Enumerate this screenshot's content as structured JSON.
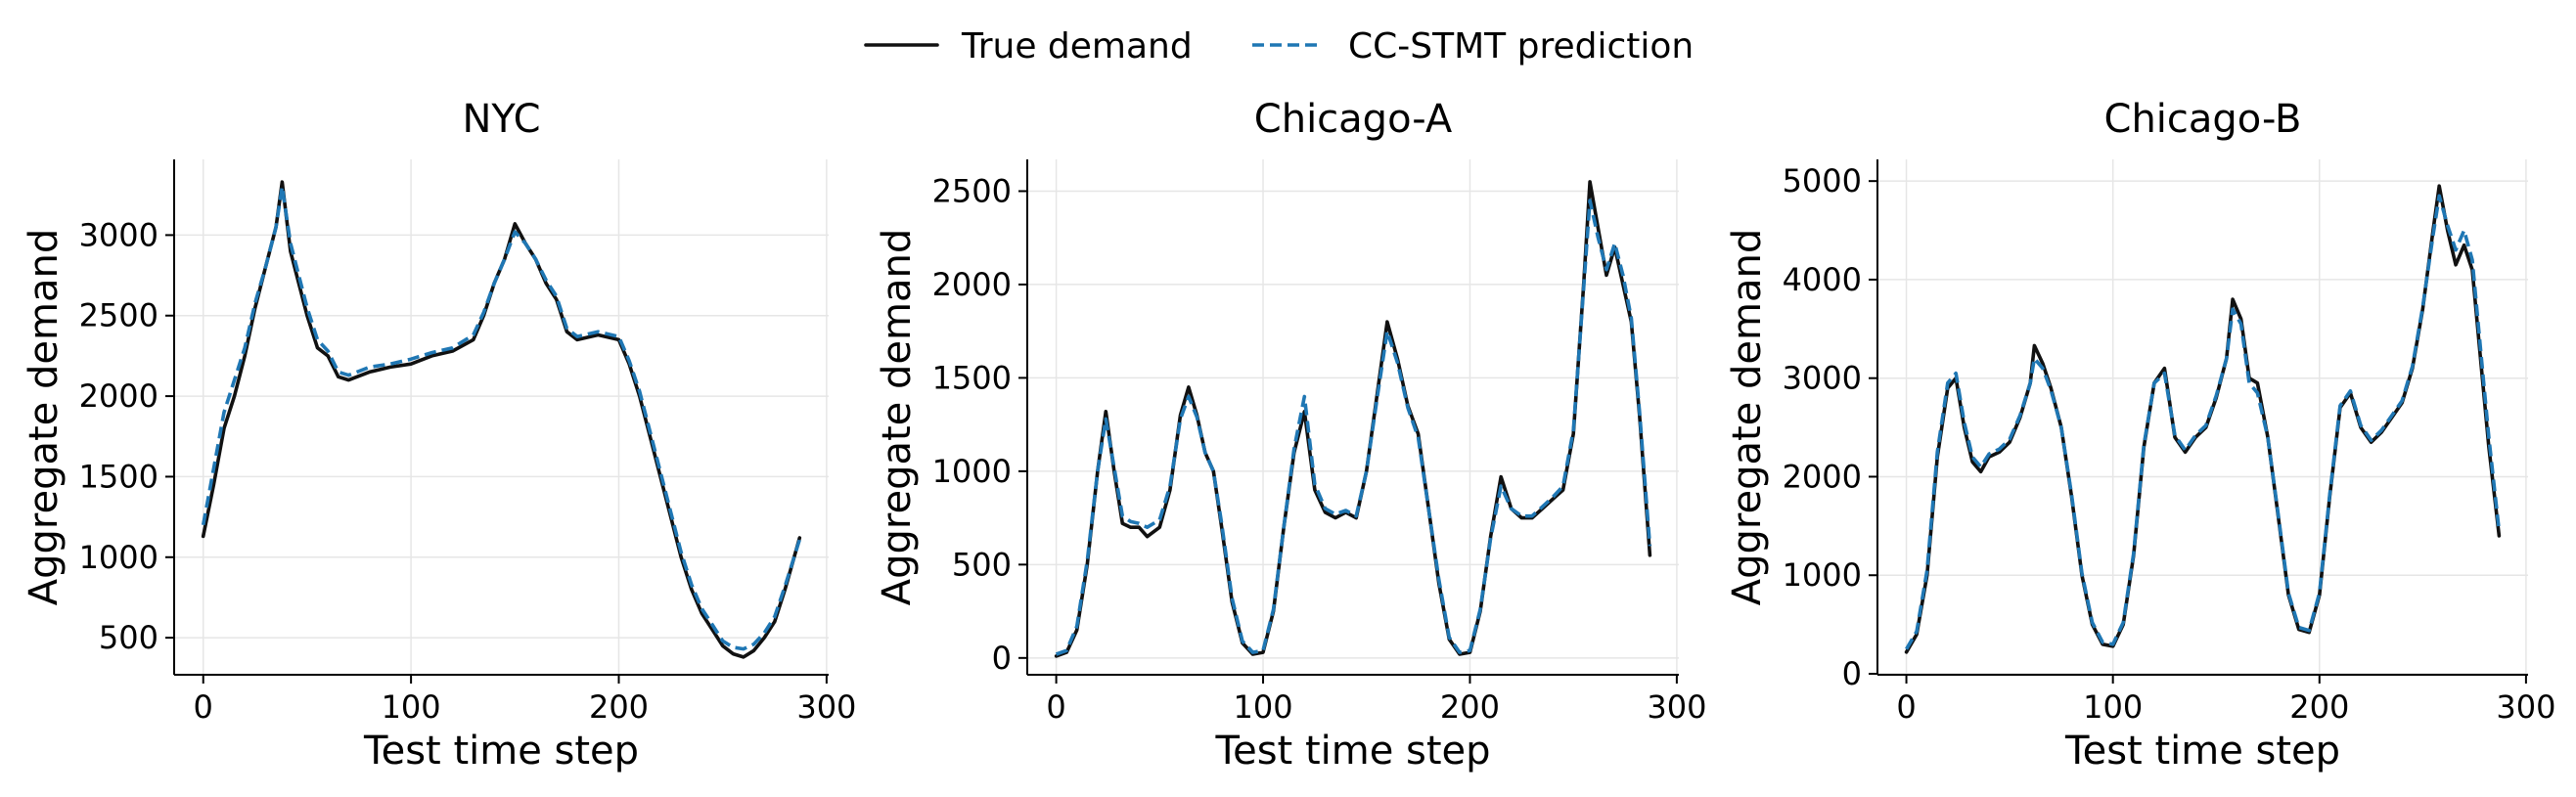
{
  "legend": {
    "true_label": "True demand",
    "pred_label": "CC-STMT prediction"
  },
  "colors": {
    "true": "#111111",
    "pred": "#1f77b4",
    "grid": "#e6e6e6"
  },
  "chart_data": [
    {
      "type": "line",
      "title": "NYC",
      "xlabel": "Test time step",
      "ylabel": "Aggregate demand",
      "xlim": [
        -14,
        301
      ],
      "ylim": [
        270,
        3470
      ],
      "xticks": [
        0,
        100,
        200,
        300
      ],
      "yticks": [
        500,
        1000,
        1500,
        2000,
        2500,
        3000
      ],
      "grid": true,
      "series": [
        {
          "name": "True demand",
          "x": [
            0,
            5,
            10,
            15,
            20,
            25,
            30,
            35,
            38,
            42,
            46,
            50,
            55,
            60,
            65,
            70,
            80,
            90,
            100,
            110,
            120,
            130,
            135,
            140,
            145,
            150,
            155,
            160,
            165,
            170,
            175,
            180,
            190,
            200,
            205,
            210,
            215,
            220,
            225,
            230,
            235,
            240,
            245,
            250,
            255,
            260,
            265,
            270,
            275,
            280,
            287
          ],
          "y": [
            1130,
            1450,
            1800,
            2000,
            2250,
            2550,
            2800,
            3050,
            3330,
            2900,
            2700,
            2500,
            2300,
            2250,
            2120,
            2100,
            2150,
            2180,
            2200,
            2250,
            2280,
            2350,
            2500,
            2700,
            2850,
            3070,
            2950,
            2850,
            2700,
            2600,
            2400,
            2350,
            2380,
            2350,
            2200,
            2000,
            1750,
            1500,
            1250,
            1000,
            800,
            650,
            550,
            450,
            400,
            380,
            420,
            500,
            600,
            800,
            1120
          ]
        },
        {
          "name": "CC-STMT prediction",
          "x": [
            0,
            5,
            10,
            15,
            20,
            25,
            30,
            35,
            38,
            42,
            46,
            50,
            55,
            60,
            65,
            70,
            80,
            90,
            100,
            110,
            120,
            130,
            135,
            140,
            145,
            150,
            155,
            160,
            165,
            170,
            175,
            180,
            190,
            200,
            205,
            210,
            215,
            220,
            225,
            230,
            235,
            240,
            245,
            250,
            255,
            260,
            265,
            270,
            275,
            280,
            287
          ],
          "y": [
            1200,
            1550,
            1900,
            2100,
            2300,
            2580,
            2800,
            3050,
            3300,
            2950,
            2750,
            2550,
            2350,
            2280,
            2150,
            2130,
            2180,
            2200,
            2230,
            2270,
            2300,
            2380,
            2520,
            2700,
            2850,
            3020,
            2950,
            2850,
            2720,
            2620,
            2420,
            2370,
            2400,
            2370,
            2220,
            2030,
            1780,
            1530,
            1280,
            1030,
            830,
            680,
            580,
            480,
            440,
            430,
            460,
            530,
            630,
            820,
            1110
          ]
        }
      ]
    },
    {
      "type": "line",
      "title": "Chicago-A",
      "xlabel": "Test time step",
      "ylabel": "Aggregate demand",
      "xlim": [
        -14,
        301
      ],
      "ylim": [
        -90,
        2670
      ],
      "xticks": [
        0,
        100,
        200,
        300
      ],
      "yticks": [
        0,
        500,
        1000,
        1500,
        2000,
        2500
      ],
      "grid": true,
      "series": [
        {
          "name": "True demand",
          "x": [
            0,
            5,
            10,
            15,
            20,
            24,
            28,
            32,
            36,
            40,
            44,
            50,
            55,
            60,
            64,
            68,
            72,
            76,
            80,
            85,
            90,
            95,
            100,
            105,
            110,
            115,
            120,
            125,
            130,
            135,
            140,
            145,
            150,
            155,
            160,
            165,
            170,
            175,
            180,
            185,
            190,
            195,
            200,
            205,
            210,
            215,
            220,
            225,
            230,
            235,
            240,
            245,
            250,
            255,
            258,
            262,
            266,
            270,
            274,
            278,
            282,
            287
          ],
          "y": [
            10,
            30,
            150,
            500,
            1000,
            1320,
            1000,
            720,
            700,
            700,
            650,
            700,
            900,
            1300,
            1450,
            1300,
            1100,
            1000,
            700,
            300,
            80,
            20,
            30,
            250,
            700,
            1100,
            1320,
            900,
            780,
            750,
            780,
            750,
            1000,
            1400,
            1800,
            1600,
            1350,
            1200,
            800,
            400,
            100,
            20,
            30,
            250,
            650,
            970,
            800,
            750,
            750,
            800,
            850,
            900,
            1200,
            2000,
            2550,
            2300,
            2050,
            2200,
            2000,
            1800,
            1300,
            550
          ]
        },
        {
          "name": "CC-STMT prediction",
          "x": [
            0,
            5,
            10,
            15,
            20,
            24,
            28,
            32,
            36,
            40,
            44,
            50,
            55,
            60,
            64,
            68,
            72,
            76,
            80,
            85,
            90,
            95,
            100,
            105,
            110,
            115,
            120,
            125,
            130,
            135,
            140,
            145,
            150,
            155,
            160,
            165,
            170,
            175,
            180,
            185,
            190,
            195,
            200,
            205,
            210,
            215,
            220,
            225,
            230,
            235,
            240,
            245,
            250,
            255,
            258,
            262,
            266,
            270,
            274,
            278,
            282,
            287
          ],
          "y": [
            20,
            40,
            170,
            520,
            1000,
            1280,
            1020,
            760,
            730,
            720,
            700,
            740,
            920,
            1280,
            1400,
            1290,
            1100,
            1000,
            720,
            320,
            90,
            30,
            40,
            260,
            700,
            1120,
            1400,
            930,
            800,
            770,
            790,
            760,
            1000,
            1380,
            1750,
            1580,
            1340,
            1180,
            800,
            420,
            110,
            30,
            40,
            260,
            640,
            920,
            800,
            760,
            760,
            810,
            860,
            920,
            1220,
            1980,
            2450,
            2250,
            2080,
            2220,
            2050,
            1820,
            1320,
            600
          ]
        }
      ]
    },
    {
      "type": "line",
      "title": "Chicago-B",
      "xlabel": "Test time step",
      "ylabel": "Aggregate demand",
      "xlim": [
        -14,
        301
      ],
      "ylim": [
        -10,
        5220
      ],
      "xticks": [
        0,
        100,
        200,
        300
      ],
      "yticks": [
        0,
        1000,
        2000,
        3000,
        4000,
        5000
      ],
      "grid": true,
      "series": [
        {
          "name": "True demand",
          "x": [
            0,
            5,
            10,
            15,
            20,
            24,
            28,
            32,
            36,
            40,
            45,
            50,
            55,
            60,
            62,
            66,
            70,
            75,
            80,
            85,
            90,
            95,
            100,
            105,
            110,
            115,
            120,
            125,
            130,
            135,
            140,
            145,
            150,
            155,
            158,
            162,
            166,
            170,
            175,
            180,
            185,
            190,
            195,
            200,
            205,
            210,
            215,
            220,
            225,
            230,
            235,
            240,
            245,
            250,
            255,
            258,
            262,
            266,
            270,
            274,
            278,
            282,
            287
          ],
          "y": [
            220,
            400,
            1000,
            2200,
            2900,
            3000,
            2500,
            2150,
            2050,
            2200,
            2250,
            2350,
            2600,
            2950,
            3330,
            3150,
            2900,
            2500,
            1800,
            1000,
            500,
            300,
            280,
            500,
            1200,
            2300,
            2950,
            3100,
            2400,
            2250,
            2400,
            2500,
            2800,
            3200,
            3800,
            3600,
            3000,
            2950,
            2400,
            1600,
            800,
            450,
            420,
            800,
            1800,
            2700,
            2850,
            2500,
            2350,
            2450,
            2600,
            2750,
            3100,
            3700,
            4500,
            4950,
            4500,
            4150,
            4350,
            4100,
            3200,
            2300,
            1400
          ]
        },
        {
          "name": "CC-STMT prediction",
          "x": [
            0,
            5,
            10,
            15,
            20,
            24,
            28,
            32,
            36,
            40,
            45,
            50,
            55,
            60,
            62,
            66,
            70,
            75,
            80,
            85,
            90,
            95,
            100,
            105,
            110,
            115,
            120,
            125,
            130,
            135,
            140,
            145,
            150,
            155,
            158,
            162,
            166,
            170,
            175,
            180,
            185,
            190,
            195,
            200,
            205,
            210,
            215,
            220,
            225,
            230,
            235,
            240,
            245,
            250,
            255,
            258,
            262,
            266,
            270,
            274,
            278,
            282,
            287
          ],
          "y": [
            250,
            430,
            1050,
            2250,
            2950,
            3050,
            2550,
            2200,
            2100,
            2230,
            2280,
            2380,
            2620,
            2950,
            3200,
            3100,
            2880,
            2500,
            1820,
            1020,
            520,
            320,
            300,
            520,
            1220,
            2320,
            2950,
            3050,
            2420,
            2270,
            2420,
            2520,
            2820,
            3200,
            3700,
            3550,
            2950,
            2850,
            2400,
            1620,
            820,
            470,
            440,
            820,
            1820,
            2720,
            2870,
            2520,
            2370,
            2470,
            2620,
            2770,
            3120,
            3720,
            4450,
            4850,
            4550,
            4300,
            4500,
            4200,
            3300,
            2400,
            1450
          ]
        }
      ]
    }
  ]
}
